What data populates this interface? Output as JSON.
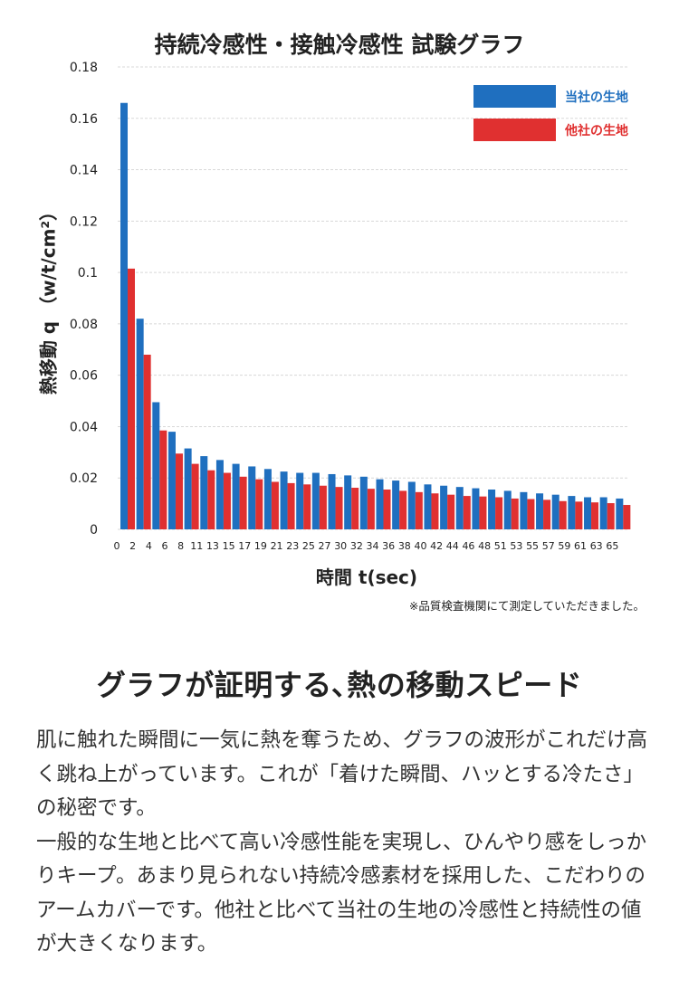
{
  "chart_data": {
    "type": "bar",
    "title": "持続冷感性・接触冷感性 試験グラフ",
    "xlabel": "時間 t(sec)",
    "ylabel": "熱移動 q （w/t/cm²）",
    "ylim": [
      0,
      0.18
    ],
    "yticks": [
      "0.18",
      "0.16",
      "0.14",
      "0.12",
      "0.1",
      "0.08",
      "0.06",
      "0.04",
      "0.02",
      "0"
    ],
    "xticks": [
      "0",
      "2",
      "4",
      "6",
      "8",
      "11",
      "13",
      "15",
      "17",
      "19",
      "21",
      "23",
      "25",
      "27",
      "30",
      "32",
      "34",
      "36",
      "38",
      "40",
      "42",
      "44",
      "46",
      "48",
      "51",
      "53",
      "55",
      "57",
      "59",
      "61",
      "63",
      "65"
    ],
    "grid": true,
    "legend_position": "top-right",
    "series": [
      {
        "name": "当社の生地",
        "color": "#1f6fbf",
        "values": [
          0.166,
          0.082,
          0.0495,
          0.038,
          0.0315,
          0.0285,
          0.027,
          0.0255,
          0.0245,
          0.0235,
          0.0225,
          0.022,
          0.022,
          0.0215,
          0.021,
          0.0205,
          0.0195,
          0.019,
          0.0185,
          0.0175,
          0.017,
          0.0165,
          0.016,
          0.0155,
          0.015,
          0.0145,
          0.014,
          0.0135,
          0.013,
          0.0125,
          0.0125,
          0.012
        ]
      },
      {
        "name": "他社の生地",
        "color": "#e03030",
        "values": [
          0.1015,
          0.068,
          0.0385,
          0.0295,
          0.0255,
          0.023,
          0.022,
          0.0205,
          0.0195,
          0.0185,
          0.018,
          0.0175,
          0.017,
          0.0165,
          0.0162,
          0.0158,
          0.0155,
          0.015,
          0.0145,
          0.014,
          0.0135,
          0.013,
          0.0128,
          0.0125,
          0.012,
          0.0118,
          0.0115,
          0.011,
          0.0108,
          0.0105,
          0.0102,
          0.0095
        ]
      }
    ]
  },
  "note": "※品質検査機関にて測定していただきました。",
  "headline": "グラフが証明する､熱の移動スピード",
  "body": [
    "肌に触れた瞬間に一気に熱を奪うため、グラフの波形がこれだけ高く跳ね上がっています。これが「着けた瞬間、ハッとする冷たさ」の秘密です。",
    "一般的な生地と比べて高い冷感性能を実現し、ひんやり感をしっかりキープ。あまり見られない持続冷感素材を採用した、こだわりのアームカバーです。他社と比べて当社の生地の冷感性と持続性の値が大きくなります。"
  ]
}
